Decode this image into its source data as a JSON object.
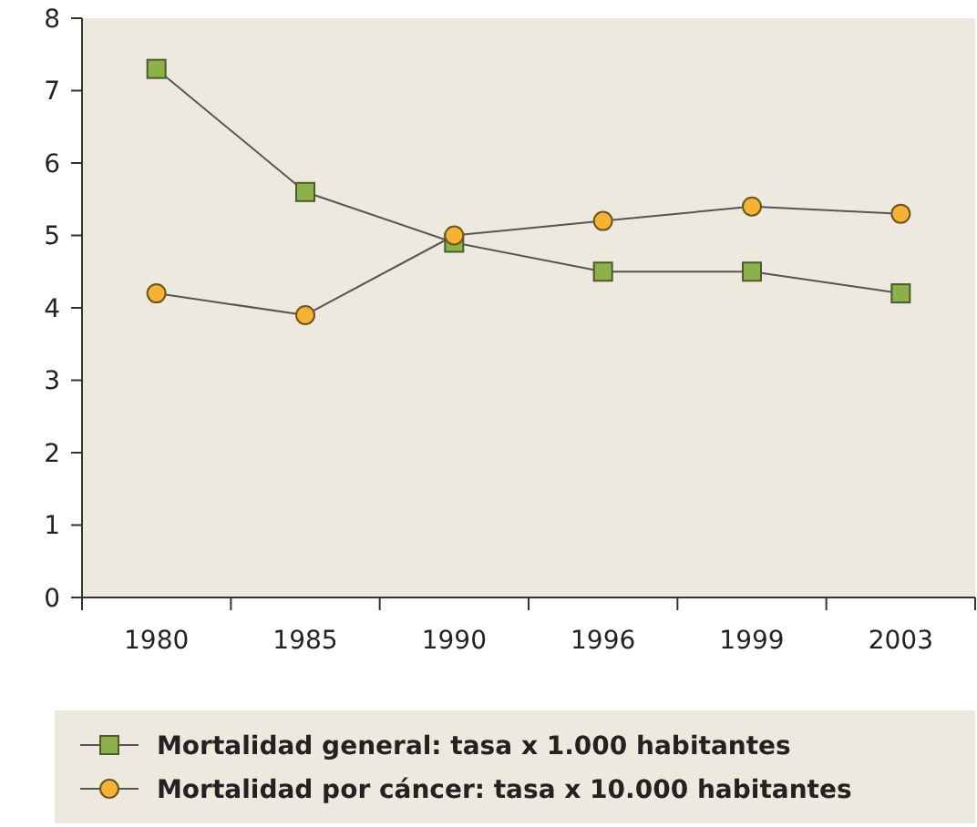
{
  "chart_data": {
    "type": "line",
    "categories": [
      "1980",
      "1985",
      "1990",
      "1996",
      "1999",
      "2003"
    ],
    "series": [
      {
        "name": "Mortalidad general: tasa x 1.000 habitantes",
        "color": "#8cb04a",
        "marker": "square",
        "values": [
          7.3,
          5.6,
          4.9,
          4.5,
          4.5,
          4.2
        ]
      },
      {
        "name": "Mortalidad por cáncer: tasa x 10.000 habitantes",
        "color": "#f5b335",
        "marker": "circle",
        "values": [
          4.2,
          3.9,
          5.0,
          5.2,
          5.4,
          5.3
        ]
      }
    ],
    "ylim": [
      0,
      8
    ],
    "yticks": [
      0,
      1,
      2,
      3,
      4,
      5,
      6,
      7,
      8
    ],
    "grid": false,
    "legend": "bottom"
  }
}
